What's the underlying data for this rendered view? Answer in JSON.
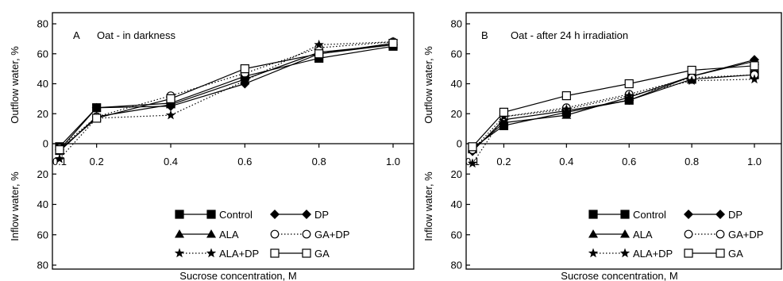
{
  "chart_data": [
    {
      "type": "line",
      "panel_letter": "A",
      "title": "Oat - in darkness",
      "xlabel": "Sucrose concentration, M",
      "ylabel_top": "Outflow water, %",
      "ylabel_bottom": "Inflow water, %",
      "x_ticks": [
        "0.1",
        "0.2",
        "0.4",
        "0.6",
        "0.8",
        "1.0"
      ],
      "y_ticks_top": [
        "0",
        "20",
        "40",
        "60",
        "80"
      ],
      "y_ticks_bottom": [
        "20",
        "40",
        "60",
        "80"
      ],
      "xlim": [
        0.1,
        1.0
      ],
      "ylim": [
        -80,
        85
      ],
      "x": [
        0.1,
        0.2,
        0.4,
        0.6,
        0.8,
        1.0
      ],
      "series": [
        {
          "name": "Control",
          "values": [
            -2,
            24,
            27,
            45,
            57,
            65
          ],
          "marker": "filled-square",
          "line": "solid"
        },
        {
          "name": "DP",
          "values": [
            -4,
            24,
            25,
            40,
            60,
            66
          ],
          "marker": "filled-diamond",
          "line": "solid"
        },
        {
          "name": "ALA",
          "values": [
            -5,
            18,
            26,
            43,
            61,
            66
          ],
          "marker": "filled-triangle",
          "line": "solid"
        },
        {
          "name": "GA+DP",
          "values": [
            -3,
            18,
            32,
            47,
            64,
            68
          ],
          "marker": "open-circle",
          "line": "dotted"
        },
        {
          "name": "ALA+DP",
          "values": [
            -10,
            17,
            19,
            42,
            66,
            68
          ],
          "marker": "filled-star",
          "line": "dotted"
        },
        {
          "name": "GA",
          "values": [
            -4,
            17,
            30,
            50,
            60,
            67
          ],
          "marker": "open-square",
          "line": "solid"
        }
      ]
    },
    {
      "type": "line",
      "panel_letter": "B",
      "title": "Oat - after 24 h irradiation",
      "xlabel": "Sucrose concentration, M",
      "ylabel_top": "Outflow water, %",
      "ylabel_bottom": "Inflow water, %",
      "x_ticks": [
        "0.1",
        "0.2",
        "0.4",
        "0.6",
        "0.8",
        "1.0"
      ],
      "y_ticks_top": [
        "0",
        "20",
        "40",
        "60",
        "80"
      ],
      "y_ticks_bottom": [
        "20",
        "40",
        "60",
        "80"
      ],
      "xlim": [
        0.1,
        1.0
      ],
      "ylim": [
        -80,
        85
      ],
      "x": [
        0.1,
        0.2,
        0.4,
        0.6,
        0.8,
        1.0
      ],
      "series": [
        {
          "name": "Control",
          "values": [
            -3,
            12,
            21,
            29,
            43,
            46
          ],
          "marker": "filled-square",
          "line": "solid"
        },
        {
          "name": "DP",
          "values": [
            -5,
            16,
            22,
            29,
            45,
            56
          ],
          "marker": "filled-diamond",
          "line": "solid"
        },
        {
          "name": "ALA",
          "values": [
            -4,
            14,
            19,
            31,
            45,
            55
          ],
          "marker": "filled-triangle",
          "line": "solid"
        },
        {
          "name": "GA+DP",
          "values": [
            -4,
            18,
            24,
            33,
            44,
            46
          ],
          "marker": "open-circle",
          "line": "dotted"
        },
        {
          "name": "ALA+DP",
          "values": [
            -13,
            18,
            23,
            32,
            42,
            43
          ],
          "marker": "filled-star",
          "line": "dotted"
        },
        {
          "name": "GA",
          "values": [
            -2,
            21,
            32,
            40,
            49,
            52
          ],
          "marker": "open-square",
          "line": "solid"
        }
      ]
    }
  ],
  "legend_layout": [
    [
      "Control",
      "DP"
    ],
    [
      "ALA",
      "GA+DP"
    ],
    [
      "ALA+DP",
      "GA"
    ]
  ]
}
